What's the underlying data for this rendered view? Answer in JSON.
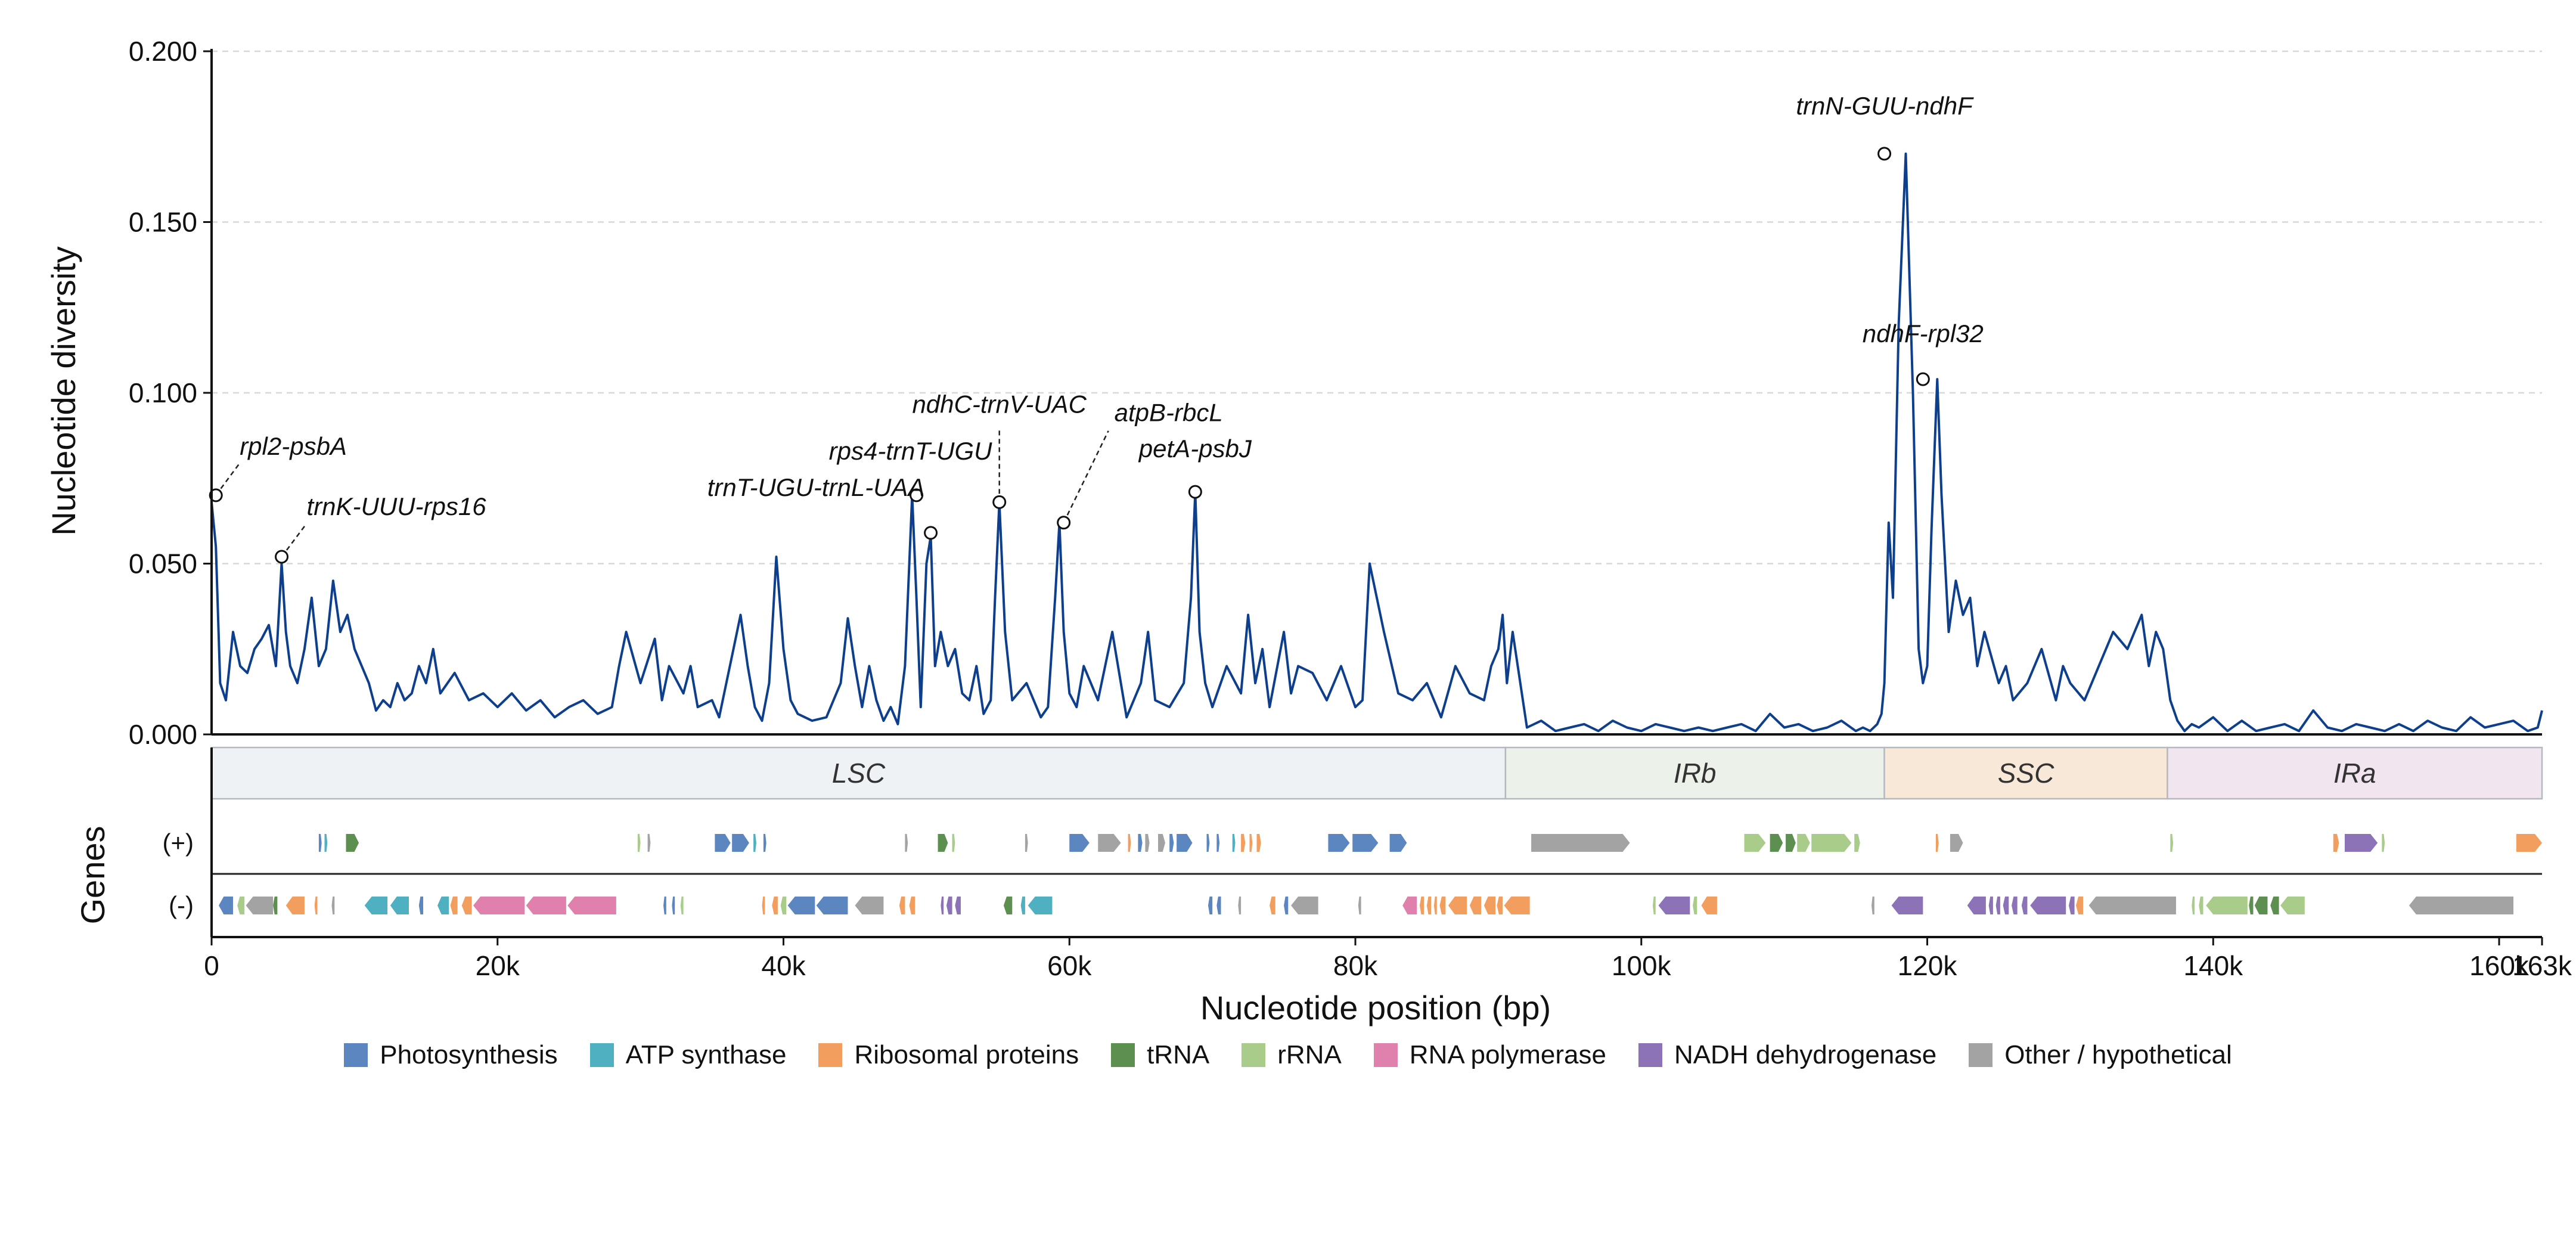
{
  "chart_data": {
    "type": "line",
    "xlabel": "Nucleotide position (bp)",
    "ylabel": "Nucleotide diversity",
    "track_label": "Genes",
    "xlim": [
      0,
      163000
    ],
    "ylim": [
      0,
      0.2
    ],
    "grid": "horizontal dashed",
    "x_ticks": [
      0,
      20000,
      40000,
      60000,
      80000,
      100000,
      120000,
      140000,
      160000,
      163000
    ],
    "x_tick_labels": [
      "0",
      "20k",
      "40k",
      "60k",
      "80k",
      "100k",
      "120k",
      "140k",
      "160k",
      "163k"
    ],
    "y_ticks": [
      0,
      0.05,
      0.1,
      0.15,
      0.2
    ],
    "y_tick_labels": [
      "0.000",
      "0.050",
      "0.100",
      "0.150",
      "0.200"
    ],
    "line_color": "#0d3f8c",
    "series": [
      {
        "x": [
          0,
          300,
          600,
          1000,
          1500,
          2000,
          2500,
          3000,
          3500,
          4000,
          4500,
          4900,
          5200,
          5500,
          6000,
          6500,
          7000,
          7500,
          8000,
          8500,
          9000,
          9500,
          10000,
          10500,
          11000,
          11500,
          12000,
          12500,
          13000,
          13500,
          14000,
          14500,
          15000,
          15500,
          16000,
          17000,
          18000,
          19000,
          20000,
          21000,
          22000,
          23000,
          24000,
          25000,
          26000,
          27000,
          28000,
          28500,
          29000,
          30000,
          31000,
          31500,
          32000,
          33000,
          33500,
          34000,
          35000,
          35500,
          36000,
          36500,
          37000,
          37500,
          38000,
          38500,
          39000,
          39500,
          40000,
          40500,
          41000,
          42000,
          43000,
          44000,
          44500,
          45000,
          45500,
          46000,
          46500,
          47000,
          47500,
          48000,
          48500,
          49000,
          49300,
          49600,
          50000,
          50300,
          50600,
          51000,
          51500,
          52000,
          52500,
          53000,
          53500,
          54000,
          54500,
          54800,
          55100,
          55500,
          56000,
          57000,
          58000,
          58500,
          59000,
          59300,
          59600,
          60000,
          60500,
          61000,
          62000,
          63000,
          64000,
          65000,
          65500,
          66000,
          67000,
          68000,
          68500,
          68800,
          69100,
          69500,
          70000,
          71000,
          72000,
          72500,
          73000,
          73500,
          74000,
          75000,
          75500,
          76000,
          77000,
          78000,
          79000,
          80000,
          80500,
          81000,
          82000,
          83000,
          84000,
          85000,
          86000,
          87000,
          88000,
          89000,
          89500,
          90000,
          90300,
          90600,
          91000,
          92000,
          93000,
          94000,
          95000,
          96000,
          97000,
          98000,
          99000,
          100000,
          101000,
          102000,
          103000,
          104000,
          105000,
          106000,
          107000,
          108000,
          109000,
          110000,
          111000,
          112000,
          113000,
          114000,
          115000,
          115500,
          116000,
          116500,
          116800,
          117000,
          117300,
          117600,
          118000,
          118500,
          119000,
          119400,
          119700,
          120000,
          120300,
          120700,
          121000,
          121500,
          122000,
          122500,
          123000,
          123500,
          124000,
          125000,
          125500,
          126000,
          127000,
          128000,
          129000,
          129500,
          130000,
          131000,
          132000,
          133000,
          134000,
          134500,
          135000,
          135500,
          136000,
          136500,
          137000,
          137500,
          138000,
          138500,
          139000,
          140000,
          141000,
          142000,
          143000,
          144000,
          145000,
          146000,
          147000,
          148000,
          149000,
          150000,
          151000,
          152000,
          153000,
          154000,
          155000,
          156000,
          157000,
          158000,
          159000,
          160000,
          161000,
          162000,
          162700,
          163000
        ],
        "y": [
          0.068,
          0.055,
          0.015,
          0.01,
          0.03,
          0.02,
          0.018,
          0.025,
          0.028,
          0.032,
          0.02,
          0.05,
          0.03,
          0.02,
          0.015,
          0.025,
          0.04,
          0.02,
          0.025,
          0.045,
          0.03,
          0.035,
          0.025,
          0.02,
          0.015,
          0.007,
          0.01,
          0.008,
          0.015,
          0.01,
          0.012,
          0.02,
          0.015,
          0.025,
          0.012,
          0.018,
          0.01,
          0.012,
          0.008,
          0.012,
          0.007,
          0.01,
          0.005,
          0.008,
          0.01,
          0.006,
          0.008,
          0.02,
          0.03,
          0.015,
          0.028,
          0.01,
          0.02,
          0.012,
          0.02,
          0.008,
          0.01,
          0.005,
          0.015,
          0.025,
          0.035,
          0.02,
          0.008,
          0.004,
          0.015,
          0.052,
          0.025,
          0.01,
          0.006,
          0.004,
          0.005,
          0.015,
          0.034,
          0.02,
          0.008,
          0.02,
          0.01,
          0.004,
          0.008,
          0.003,
          0.02,
          0.07,
          0.04,
          0.008,
          0.05,
          0.058,
          0.02,
          0.03,
          0.02,
          0.025,
          0.012,
          0.01,
          0.02,
          0.006,
          0.01,
          0.04,
          0.068,
          0.03,
          0.01,
          0.015,
          0.005,
          0.008,
          0.04,
          0.062,
          0.03,
          0.012,
          0.008,
          0.02,
          0.01,
          0.03,
          0.005,
          0.015,
          0.03,
          0.01,
          0.008,
          0.015,
          0.04,
          0.071,
          0.03,
          0.015,
          0.008,
          0.02,
          0.012,
          0.035,
          0.015,
          0.025,
          0.008,
          0.03,
          0.012,
          0.02,
          0.018,
          0.01,
          0.02,
          0.008,
          0.01,
          0.05,
          0.03,
          0.012,
          0.01,
          0.015,
          0.005,
          0.02,
          0.012,
          0.01,
          0.02,
          0.025,
          0.035,
          0.015,
          0.03,
          0.002,
          0.004,
          0.001,
          0.002,
          0.003,
          0.001,
          0.004,
          0.002,
          0.001,
          0.003,
          0.002,
          0.001,
          0.002,
          0.001,
          0.002,
          0.003,
          0.001,
          0.006,
          0.002,
          0.003,
          0.001,
          0.002,
          0.004,
          0.001,
          0.002,
          0.001,
          0.003,
          0.006,
          0.015,
          0.062,
          0.04,
          0.12,
          0.17,
          0.1,
          0.025,
          0.015,
          0.02,
          0.06,
          0.104,
          0.07,
          0.03,
          0.045,
          0.035,
          0.04,
          0.02,
          0.03,
          0.015,
          0.02,
          0.01,
          0.015,
          0.025,
          0.01,
          0.02,
          0.015,
          0.01,
          0.02,
          0.03,
          0.025,
          0.03,
          0.035,
          0.02,
          0.03,
          0.025,
          0.01,
          0.004,
          0.001,
          0.003,
          0.002,
          0.005,
          0.001,
          0.004,
          0.001,
          0.002,
          0.003,
          0.001,
          0.007,
          0.002,
          0.001,
          0.003,
          0.002,
          0.001,
          0.003,
          0.001,
          0.004,
          0.002,
          0.001,
          0.005,
          0.002,
          0.003,
          0.004,
          0.001,
          0.002,
          0.007
        ]
      }
    ],
    "peaks": [
      {
        "label": "rpl2-psbA",
        "x": 300,
        "y": 0.07
      },
      {
        "label": "trnK-UUU-rps16",
        "x": 4900,
        "y": 0.052
      },
      {
        "label": "rps4-trnT-UGU",
        "x": 49300,
        "y": 0.07
      },
      {
        "label": "trnT-UGU-trnL-UAA",
        "x": 50300,
        "y": 0.059
      },
      {
        "label": "ndhC-trnV-UAC",
        "x": 55100,
        "y": 0.068
      },
      {
        "label": "atpB-rbcL",
        "x": 59600,
        "y": 0.062
      },
      {
        "label": "petA-psbJ",
        "x": 68800,
        "y": 0.071
      },
      {
        "label": "trnN-GUU-ndhF",
        "x": 117000,
        "y": 0.17
      },
      {
        "label": "ndhF-rpl32",
        "x": 119700,
        "y": 0.104
      }
    ],
    "regions": [
      {
        "label": "LSC",
        "start": 0,
        "end": 90500,
        "color": "#eef2f5"
      },
      {
        "label": "IRb",
        "start": 90500,
        "end": 117000,
        "color": "#ecf2ea"
      },
      {
        "label": "SSC",
        "start": 117000,
        "end": 136800,
        "color": "#f8e8d8"
      },
      {
        "label": "IRa",
        "start": 136800,
        "end": 163000,
        "color": "#f1e6f0"
      }
    ],
    "strands": [
      "(+)",
      "(-)"
    ],
    "gene_categories": [
      {
        "key": "photo",
        "label": "Photosynthesis",
        "color": "#5b86c0"
      },
      {
        "key": "atp",
        "label": "ATP synthase",
        "color": "#4fb0c1"
      },
      {
        "key": "ribo",
        "label": "Ribosomal proteins",
        "color": "#f29e5f"
      },
      {
        "key": "trna",
        "label": "tRNA",
        "color": "#5d9050"
      },
      {
        "key": "rrna",
        "label": "rRNA",
        "color": "#a9cc8a"
      },
      {
        "key": "rnap",
        "label": "RNA polymerase",
        "color": "#e080ad"
      },
      {
        "key": "ndh",
        "label": "NADH dehydrogenase",
        "color": "#8c72b6"
      },
      {
        "key": "other",
        "label": "Other / hypothetical",
        "color": "#a3a3a3"
      }
    ],
    "genes_plus": [
      [
        7500,
        7700,
        "photo"
      ],
      [
        7900,
        8100,
        "atp"
      ],
      [
        9400,
        10300,
        "trna"
      ],
      [
        29800,
        30000,
        "rrna"
      ],
      [
        30500,
        30700,
        "other"
      ],
      [
        35200,
        36300,
        "photo"
      ],
      [
        36400,
        37600,
        "photo"
      ],
      [
        37900,
        38100,
        "atp"
      ],
      [
        38600,
        38800,
        "photo"
      ],
      [
        48500,
        48700,
        "other"
      ],
      [
        50800,
        51500,
        "trna"
      ],
      [
        51800,
        52000,
        "rrna"
      ],
      [
        56900,
        57100,
        "other"
      ],
      [
        60000,
        61400,
        "photo"
      ],
      [
        62000,
        63600,
        "other"
      ],
      [
        64100,
        64300,
        "ribo"
      ],
      [
        64800,
        65100,
        "photo"
      ],
      [
        65300,
        65600,
        "other"
      ],
      [
        66200,
        66700,
        "other"
      ],
      [
        67000,
        67300,
        "photo"
      ],
      [
        67500,
        68600,
        "photo"
      ],
      [
        69600,
        69800,
        "photo"
      ],
      [
        70300,
        70500,
        "photo"
      ],
      [
        71400,
        71600,
        "atp"
      ],
      [
        72000,
        72300,
        "ribo"
      ],
      [
        72600,
        72800,
        "ribo"
      ],
      [
        73100,
        73400,
        "ribo"
      ],
      [
        78100,
        79600,
        "photo"
      ],
      [
        79800,
        81600,
        "photo"
      ],
      [
        82400,
        83600,
        "photo"
      ],
      [
        92300,
        99200,
        "other"
      ],
      [
        107200,
        108700,
        "rrna"
      ],
      [
        109000,
        109900,
        "trna"
      ],
      [
        110100,
        110800,
        "trna"
      ],
      [
        110900,
        111800,
        "rrna"
      ],
      [
        111900,
        114700,
        "rrna"
      ],
      [
        114900,
        115300,
        "rrna"
      ],
      [
        120600,
        120800,
        "ribo"
      ],
      [
        121600,
        122500,
        "other"
      ],
      [
        137000,
        137200,
        "rrna"
      ],
      [
        148400,
        148800,
        "ribo"
      ],
      [
        149200,
        151500,
        "ndh"
      ],
      [
        151800,
        152000,
        "rrna"
      ],
      [
        161200,
        163000,
        "ribo"
      ]
    ],
    "genes_minus": [
      [
        500,
        1500,
        "photo"
      ],
      [
        1800,
        2300,
        "rrna"
      ],
      [
        2400,
        4300,
        "other"
      ],
      [
        4300,
        4600,
        "trna"
      ],
      [
        5200,
        6500,
        "ribo"
      ],
      [
        7200,
        7400,
        "ribo"
      ],
      [
        8400,
        8600,
        "other"
      ],
      [
        10700,
        12300,
        "atp"
      ],
      [
        12500,
        13800,
        "atp"
      ],
      [
        14500,
        14800,
        "photo"
      ],
      [
        15800,
        16600,
        "atp"
      ],
      [
        16700,
        17200,
        "ribo"
      ],
      [
        17500,
        18200,
        "ribo"
      ],
      [
        18300,
        21900,
        "rnap"
      ],
      [
        22000,
        24800,
        "rnap"
      ],
      [
        24900,
        28300,
        "rnap"
      ],
      [
        31600,
        31800,
        "photo"
      ],
      [
        32200,
        32400,
        "photo"
      ],
      [
        32800,
        33000,
        "rrna"
      ],
      [
        38500,
        38700,
        "ribo"
      ],
      [
        39200,
        39600,
        "ribo"
      ],
      [
        39800,
        40200,
        "rrna"
      ],
      [
        40300,
        42200,
        "photo"
      ],
      [
        42300,
        44500,
        "photo"
      ],
      [
        45000,
        47000,
        "other"
      ],
      [
        48100,
        48500,
        "ribo"
      ],
      [
        48800,
        49200,
        "ribo"
      ],
      [
        51000,
        51200,
        "ndh"
      ],
      [
        51400,
        51800,
        "ndh"
      ],
      [
        52000,
        52400,
        "ndh"
      ],
      [
        55400,
        56000,
        "trna"
      ],
      [
        56600,
        56900,
        "atp"
      ],
      [
        57100,
        58800,
        "atp"
      ],
      [
        69700,
        70000,
        "photo"
      ],
      [
        70300,
        70600,
        "photo"
      ],
      [
        71800,
        72000,
        "other"
      ],
      [
        74000,
        74400,
        "ribo"
      ],
      [
        75000,
        75300,
        "photo"
      ],
      [
        75500,
        77400,
        "other"
      ],
      [
        80200,
        80400,
        "other"
      ],
      [
        83300,
        84300,
        "rnap"
      ],
      [
        84500,
        84800,
        "ribo"
      ],
      [
        85000,
        85300,
        "ribo"
      ],
      [
        85500,
        85700,
        "ribo"
      ],
      [
        85900,
        86300,
        "ribo"
      ],
      [
        86500,
        87800,
        "ribo"
      ],
      [
        88000,
        88800,
        "ribo"
      ],
      [
        89000,
        89800,
        "ribo"
      ],
      [
        89900,
        90300,
        "ribo"
      ],
      [
        90400,
        92200,
        "ribo"
      ],
      [
        100800,
        101000,
        "rrna"
      ],
      [
        101200,
        103400,
        "ndh"
      ],
      [
        103600,
        103900,
        "rrna"
      ],
      [
        104200,
        105300,
        "ribo"
      ],
      [
        116100,
        116300,
        "other"
      ],
      [
        117500,
        119700,
        "ndh"
      ],
      [
        122800,
        124100,
        "ndh"
      ],
      [
        124300,
        124600,
        "ndh"
      ],
      [
        124800,
        125100,
        "ndh"
      ],
      [
        125300,
        125700,
        "ndh"
      ],
      [
        125900,
        126300,
        "ndh"
      ],
      [
        126600,
        127000,
        "ndh"
      ],
      [
        127200,
        129700,
        "ndh"
      ],
      [
        129900,
        130300,
        "ndh"
      ],
      [
        130400,
        130900,
        "ribo"
      ],
      [
        131300,
        137400,
        "other"
      ],
      [
        138500,
        138700,
        "rrna"
      ],
      [
        139000,
        139300,
        "rrna"
      ],
      [
        139500,
        142400,
        "rrna"
      ],
      [
        142500,
        142800,
        "trna"
      ],
      [
        142900,
        143800,
        "trna"
      ],
      [
        144000,
        144600,
        "trna"
      ],
      [
        144700,
        146400,
        "rrna"
      ],
      [
        153700,
        161000,
        "other"
      ]
    ]
  }
}
